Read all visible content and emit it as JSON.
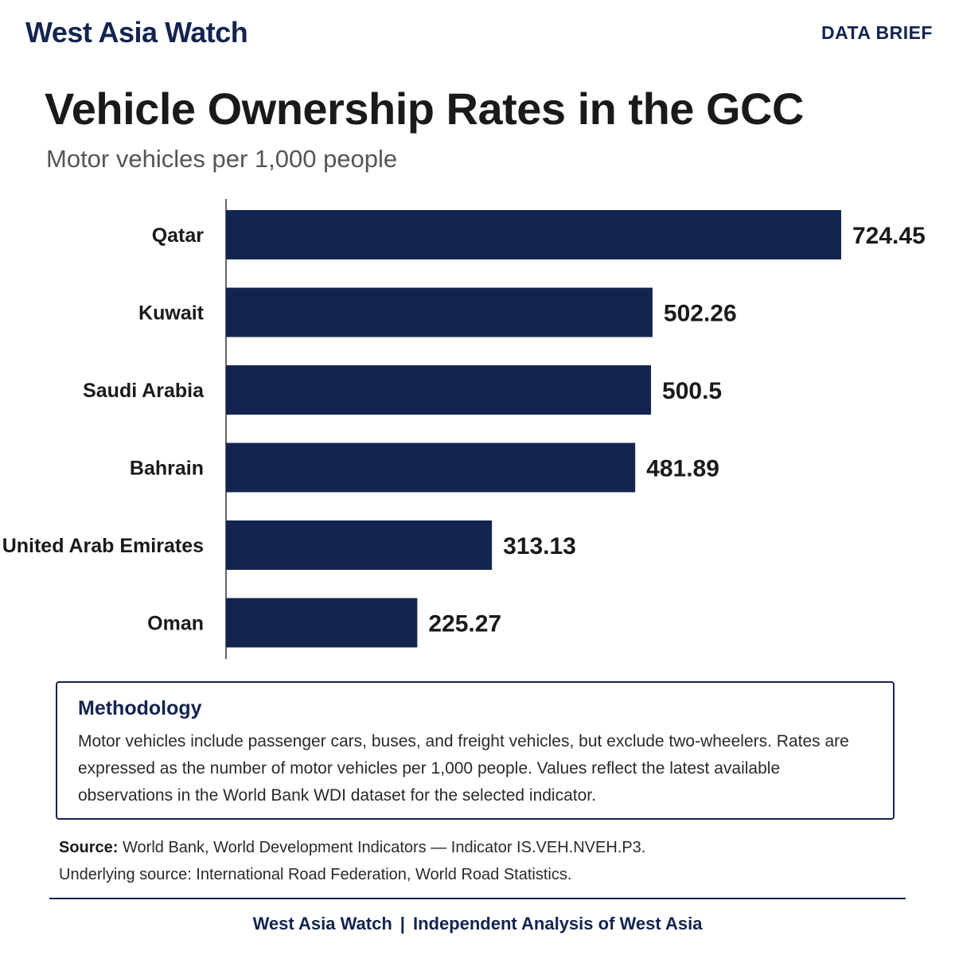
{
  "header": {
    "brand": "West Asia Watch",
    "tag": "DATA BRIEF"
  },
  "chart_data": {
    "type": "bar",
    "orientation": "horizontal",
    "title": "Vehicle Ownership Rates in the GCC",
    "subtitle": "Motor vehicles per 1,000 people",
    "categories": [
      "Qatar",
      "Kuwait",
      "Saudi Arabia",
      "Bahrain",
      "United Arab Emirates",
      "Oman"
    ],
    "values": [
      724.45,
      502.26,
      500.5,
      481.89,
      313.13,
      225.27
    ],
    "value_labels": [
      "724.45",
      "502.26",
      "500.5",
      "481.89",
      "313.13",
      "225.27"
    ],
    "xlim": [
      0,
      724.45
    ],
    "bar_color": "#13244f",
    "grid": false,
    "xlabel": "",
    "ylabel": ""
  },
  "methodology": {
    "title": "Methodology",
    "text": "Motor vehicles include passenger cars, buses, and freight vehicles, but exclude two-wheelers. Rates are expressed as the number of motor vehicles per 1,000 people. Values reflect the latest available observations in the World Bank WDI dataset for the selected indicator."
  },
  "source": {
    "label": "Source:",
    "line1": "World Bank, World Development Indicators — Indicator IS.VEH.NVEH.P3.",
    "line2": "Underlying source: International Road Federation, World Road Statistics."
  },
  "footer": {
    "left": "West Asia Watch",
    "separator": "|",
    "right": "Independent Analysis of West Asia"
  }
}
